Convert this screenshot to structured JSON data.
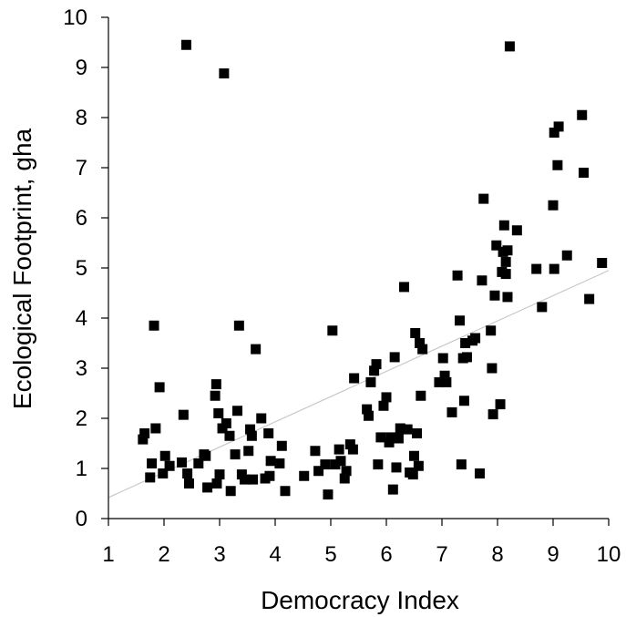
{
  "chart_data": {
    "type": "scatter",
    "title": "",
    "xlabel": "Democracy Index",
    "ylabel": "Ecological Footprint, gha",
    "xlim": [
      1,
      10
    ],
    "ylim": [
      0,
      10
    ],
    "xticks": [
      "1",
      "2",
      "3",
      "4",
      "5",
      "6",
      "7",
      "8",
      "9",
      "10"
    ],
    "yticks": [
      "0",
      "1",
      "2",
      "3",
      "4",
      "5",
      "6",
      "7",
      "8",
      "9",
      "10"
    ],
    "grid": false,
    "legend": "none",
    "marker": "square",
    "marker_color": "#000000",
    "trendline": {
      "type": "linear",
      "color": "#c8c8c8",
      "points": [
        [
          1,
          0.42
        ],
        [
          10,
          4.95
        ]
      ]
    },
    "points": [
      [
        1.62,
        1.58
      ],
      [
        1.65,
        1.7
      ],
      [
        1.75,
        0.82
      ],
      [
        1.78,
        1.1
      ],
      [
        1.82,
        3.85
      ],
      [
        1.85,
        1.8
      ],
      [
        1.92,
        2.62
      ],
      [
        1.98,
        0.9
      ],
      [
        2.02,
        1.25
      ],
      [
        2.1,
        1.05
      ],
      [
        2.32,
        1.12
      ],
      [
        2.35,
        2.07
      ],
      [
        2.4,
        9.45
      ],
      [
        2.42,
        0.9
      ],
      [
        2.45,
        0.7
      ],
      [
        2.62,
        1.1
      ],
      [
        2.72,
        1.28
      ],
      [
        2.75,
        1.25
      ],
      [
        2.78,
        0.62
      ],
      [
        2.92,
        2.45
      ],
      [
        2.94,
        2.68
      ],
      [
        2.95,
        0.7
      ],
      [
        2.98,
        2.1
      ],
      [
        3.0,
        0.88
      ],
      [
        3.05,
        1.8
      ],
      [
        3.08,
        8.88
      ],
      [
        3.12,
        1.9
      ],
      [
        3.18,
        1.65
      ],
      [
        3.2,
        0.55
      ],
      [
        3.28,
        1.28
      ],
      [
        3.32,
        2.15
      ],
      [
        3.35,
        3.85
      ],
      [
        3.4,
        0.88
      ],
      [
        3.45,
        0.78
      ],
      [
        3.52,
        1.35
      ],
      [
        3.55,
        1.78
      ],
      [
        3.58,
        1.65
      ],
      [
        3.6,
        0.78
      ],
      [
        3.65,
        3.38
      ],
      [
        3.75,
        2.0
      ],
      [
        3.82,
        0.8
      ],
      [
        3.88,
        1.7
      ],
      [
        3.9,
        0.85
      ],
      [
        3.92,
        1.15
      ],
      [
        4.08,
        1.1
      ],
      [
        4.12,
        1.45
      ],
      [
        4.18,
        0.55
      ],
      [
        4.52,
        0.85
      ],
      [
        4.72,
        1.35
      ],
      [
        4.78,
        0.95
      ],
      [
        4.9,
        1.08
      ],
      [
        4.95,
        0.48
      ],
      [
        5.03,
        3.75
      ],
      [
        5.08,
        1.08
      ],
      [
        5.15,
        1.38
      ],
      [
        5.18,
        1.15
      ],
      [
        5.25,
        0.8
      ],
      [
        5.28,
        0.95
      ],
      [
        5.35,
        1.48
      ],
      [
        5.4,
        1.38
      ],
      [
        5.42,
        2.8
      ],
      [
        5.65,
        2.18
      ],
      [
        5.68,
        2.05
      ],
      [
        5.72,
        2.72
      ],
      [
        5.78,
        2.95
      ],
      [
        5.82,
        3.08
      ],
      [
        5.85,
        1.08
      ],
      [
        5.9,
        1.62
      ],
      [
        5.95,
        2.25
      ],
      [
        6.0,
        2.42
      ],
      [
        6.05,
        1.52
      ],
      [
        6.08,
        1.62
      ],
      [
        6.12,
        0.58
      ],
      [
        6.15,
        3.22
      ],
      [
        6.18,
        1.02
      ],
      [
        6.22,
        1.6
      ],
      [
        6.25,
        1.8
      ],
      [
        6.32,
        4.62
      ],
      [
        6.38,
        1.78
      ],
      [
        6.42,
        0.92
      ],
      [
        6.48,
        0.88
      ],
      [
        6.5,
        1.25
      ],
      [
        6.52,
        3.7
      ],
      [
        6.55,
        1.7
      ],
      [
        6.58,
        1.05
      ],
      [
        6.6,
        3.5
      ],
      [
        6.62,
        2.45
      ],
      [
        6.65,
        3.38
      ],
      [
        6.95,
        2.72
      ],
      [
        7.02,
        3.2
      ],
      [
        7.05,
        2.85
      ],
      [
        7.08,
        2.72
      ],
      [
        7.18,
        2.12
      ],
      [
        7.28,
        4.85
      ],
      [
        7.32,
        3.95
      ],
      [
        7.35,
        1.08
      ],
      [
        7.38,
        3.2
      ],
      [
        7.4,
        2.35
      ],
      [
        7.42,
        3.5
      ],
      [
        7.45,
        3.22
      ],
      [
        7.55,
        3.55
      ],
      [
        7.6,
        3.6
      ],
      [
        7.68,
        0.9
      ],
      [
        7.72,
        4.75
      ],
      [
        7.75,
        6.38
      ],
      [
        7.88,
        3.75
      ],
      [
        7.9,
        3.0
      ],
      [
        7.92,
        2.08
      ],
      [
        7.95,
        4.45
      ],
      [
        7.98,
        5.45
      ],
      [
        8.05,
        2.28
      ],
      [
        8.08,
        4.92
      ],
      [
        8.1,
        5.32
      ],
      [
        8.12,
        5.85
      ],
      [
        8.15,
        4.88
      ],
      [
        8.15,
        5.12
      ],
      [
        8.18,
        4.42
      ],
      [
        8.18,
        5.35
      ],
      [
        8.22,
        9.42
      ],
      [
        8.35,
        5.75
      ],
      [
        8.7,
        4.98
      ],
      [
        8.8,
        4.22
      ],
      [
        9.0,
        6.25
      ],
      [
        9.02,
        4.98
      ],
      [
        9.02,
        7.7
      ],
      [
        9.08,
        7.05
      ],
      [
        9.1,
        7.82
      ],
      [
        9.25,
        5.25
      ],
      [
        9.52,
        8.05
      ],
      [
        9.55,
        6.9
      ],
      [
        9.65,
        4.38
      ],
      [
        9.88,
        5.1
      ]
    ]
  }
}
